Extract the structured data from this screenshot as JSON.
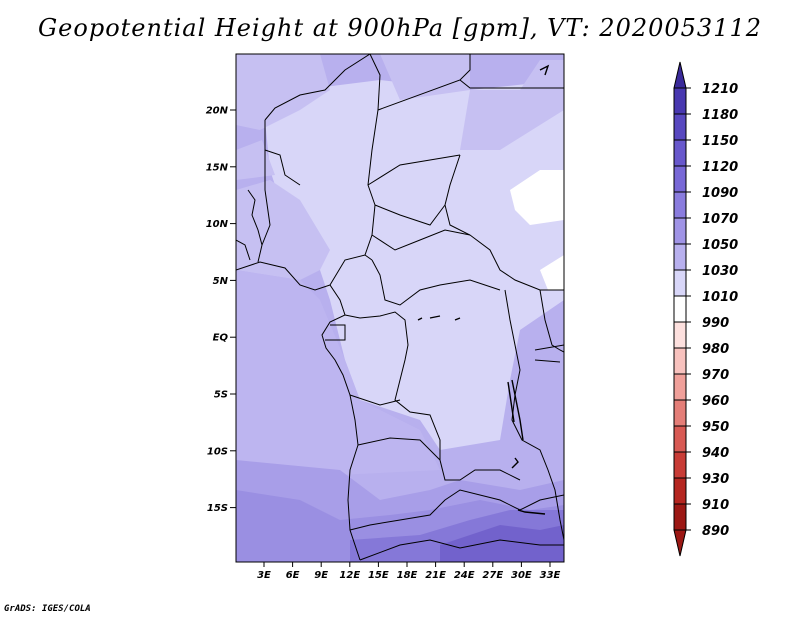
{
  "title": "Geopotential Height at 900hPa [gpm], VT: 2020053112",
  "footer": "GrADS: IGES/COLA",
  "map": {
    "y_ticks": [
      "20N",
      "15N",
      "10N",
      "5N",
      "EQ",
      "5S",
      "10S",
      "15S"
    ],
    "x_ticks": [
      "3E",
      "6E",
      "9E",
      "12E",
      "15E",
      "18E",
      "21E",
      "24E",
      "27E",
      "30E",
      "33E"
    ]
  },
  "colorbar": {
    "levels": [
      "1210",
      "1180",
      "1150",
      "1120",
      "1090",
      "1070",
      "1050",
      "1030",
      "1010",
      "990",
      "980",
      "970",
      "960",
      "950",
      "940",
      "930",
      "910",
      "890"
    ],
    "colors": [
      "#3a2a9a",
      "#4838b0",
      "#5848c0",
      "#6858cc",
      "#7868d6",
      "#8a7cde",
      "#a094e6",
      "#b8b0ee",
      "#d8d6f8",
      "#ffffff",
      "#fde0de",
      "#f8c2be",
      "#f0a09a",
      "#e47e78",
      "#d85a54",
      "#c83c36",
      "#b52620",
      "#9c1814"
    ]
  }
}
